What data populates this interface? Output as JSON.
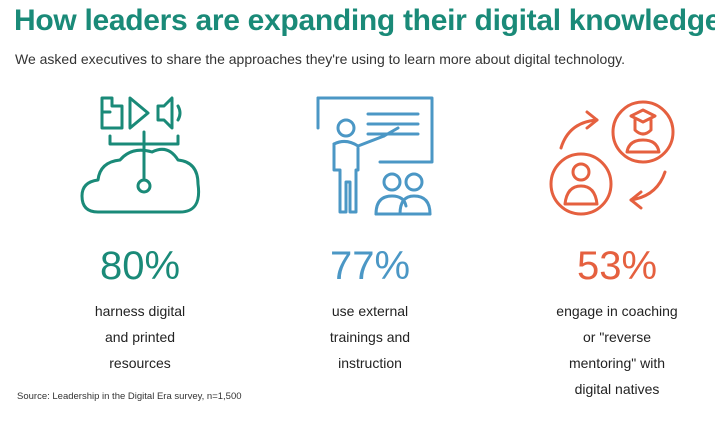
{
  "header": {
    "title": "How leaders are expanding their digital knowledge",
    "subtitle": "We asked executives to share the approaches they're using to learn more about digital technology."
  },
  "stats": [
    {
      "percent": "80%",
      "lines": [
        "harness digital",
        "and printed",
        "resources"
      ],
      "color": "#1a8a78",
      "icon": "cloud-media-icon"
    },
    {
      "percent": "77%",
      "lines": [
        "use external",
        "trainings and",
        "instruction"
      ],
      "color": "#4b97c5",
      "icon": "presentation-training-icon"
    },
    {
      "percent": "53%",
      "lines": [
        "engage in coaching",
        "or \"reverse",
        "mentoring\" with",
        "digital natives"
      ],
      "color": "#e5603f",
      "icon": "mentoring-exchange-icon"
    }
  ],
  "footer": {
    "source": "Source: Leadership in the Digital Era survey, n=1,500"
  }
}
